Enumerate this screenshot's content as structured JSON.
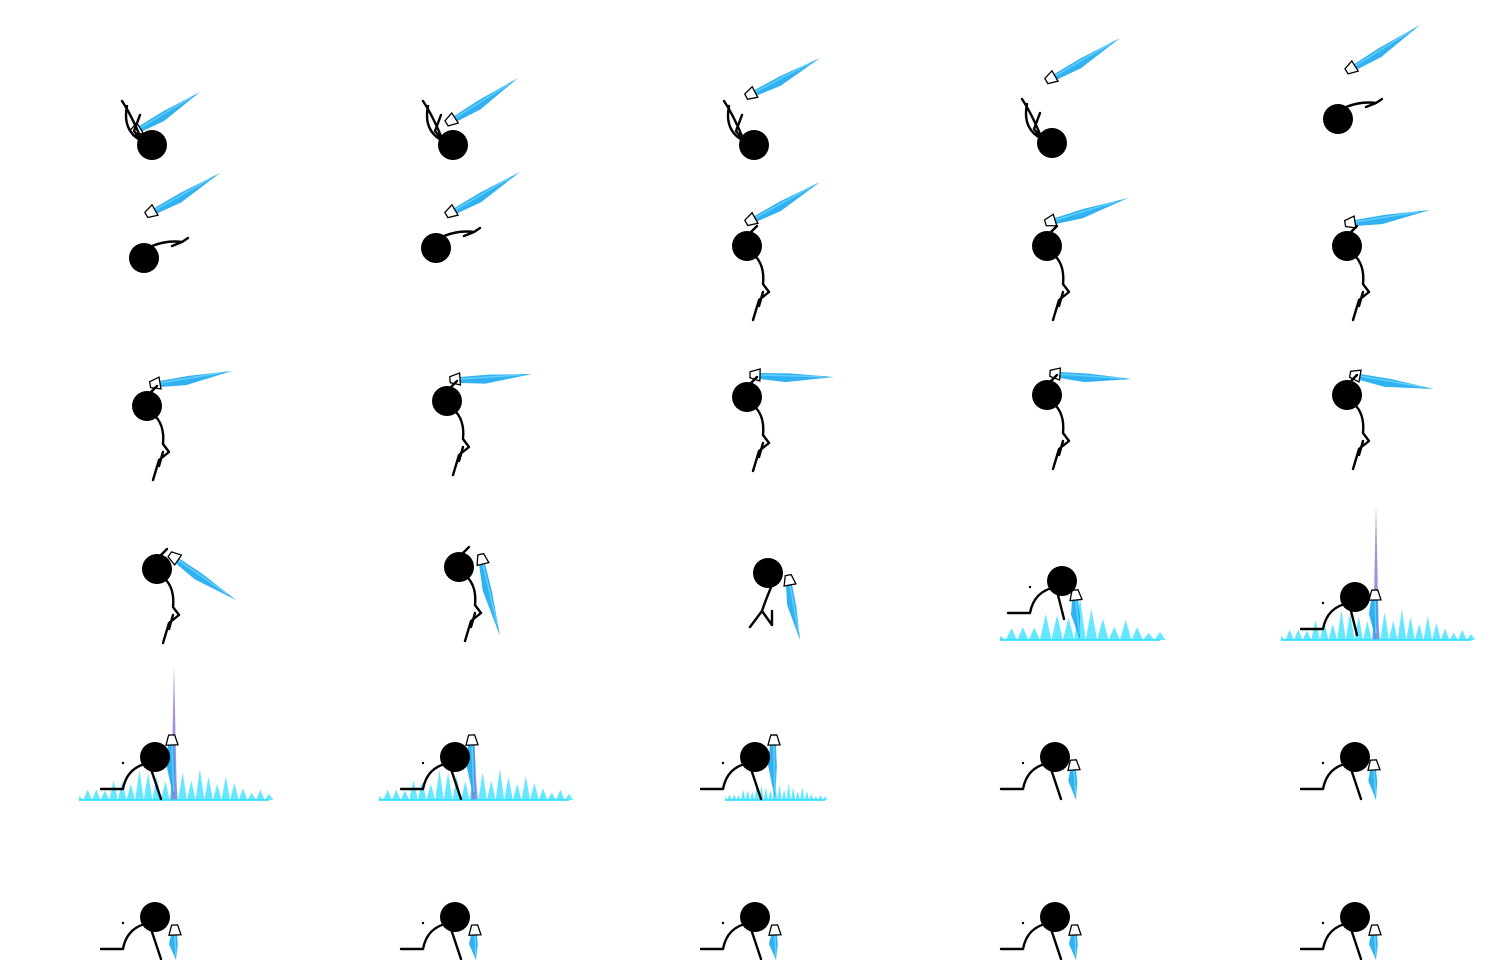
{
  "sprite_sheet": {
    "columns": 5,
    "rows": 6,
    "frame_count": 30,
    "colors": {
      "body": "#000000",
      "blade_blue": "#1aa8f0",
      "blade_light": "#6fd6ff",
      "splash_cyan": "#2fe0ff",
      "pillar_violet": "#9b7bd8",
      "hilt": "#ffffff"
    },
    "frames": [
      {
        "pose": "tumble-up",
        "blade": "diag-up",
        "fx": "none"
      },
      {
        "pose": "tumble-up",
        "blade": "diag-up",
        "fx": "none"
      },
      {
        "pose": "tumble-up",
        "blade": "diag-up",
        "fx": "none"
      },
      {
        "pose": "tumble-up",
        "blade": "diag-up",
        "fx": "none"
      },
      {
        "pose": "tumble-side",
        "blade": "diag-up-detached",
        "fx": "none"
      },
      {
        "pose": "tumble-side",
        "blade": "diag-up-detached",
        "fx": "none"
      },
      {
        "pose": "tumble-side",
        "blade": "diag-up-detached",
        "fx": "none"
      },
      {
        "pose": "hang",
        "blade": "diag-up",
        "fx": "none"
      },
      {
        "pose": "hang",
        "blade": "diag-up-shallow",
        "fx": "none"
      },
      {
        "pose": "hang",
        "blade": "near-horizontal",
        "fx": "none"
      },
      {
        "pose": "hang",
        "blade": "horizontal",
        "fx": "none"
      },
      {
        "pose": "hang",
        "blade": "horizontal",
        "fx": "none"
      },
      {
        "pose": "hang",
        "blade": "horizontal",
        "fx": "none"
      },
      {
        "pose": "hang",
        "blade": "horizontal",
        "fx": "none"
      },
      {
        "pose": "hang",
        "blade": "slight-down",
        "fx": "none"
      },
      {
        "pose": "hang",
        "blade": "diag-down",
        "fx": "none"
      },
      {
        "pose": "hang",
        "blade": "steep-down",
        "fx": "none"
      },
      {
        "pose": "land",
        "blade": "vertical-down",
        "fx": "none"
      },
      {
        "pose": "crouch",
        "blade": "vertical-down",
        "fx": "splash-small"
      },
      {
        "pose": "crouch",
        "blade": "vertical-down",
        "fx": "splash-pillar-large"
      },
      {
        "pose": "crouch-deep",
        "blade": "vertical-down",
        "fx": "splash-pillar-large"
      },
      {
        "pose": "crouch-deep",
        "blade": "vertical-down",
        "fx": "splash-pillar-medium"
      },
      {
        "pose": "crouch-deep",
        "blade": "vertical-down",
        "fx": "splash-fade"
      },
      {
        "pose": "crouch-deep",
        "blade": "vertical-down",
        "fx": "none"
      },
      {
        "pose": "crouch-deep",
        "blade": "vertical-down",
        "fx": "none"
      },
      {
        "pose": "crouch-deep",
        "blade": "vertical-down",
        "fx": "none"
      },
      {
        "pose": "crouch-deep",
        "blade": "vertical-down",
        "fx": "none"
      },
      {
        "pose": "crouch-deep",
        "blade": "vertical-down",
        "fx": "none"
      },
      {
        "pose": "crouch-deep",
        "blade": "vertical-down",
        "fx": "none"
      },
      {
        "pose": "crouch-deep",
        "blade": "vertical-down",
        "fx": "none"
      }
    ]
  }
}
